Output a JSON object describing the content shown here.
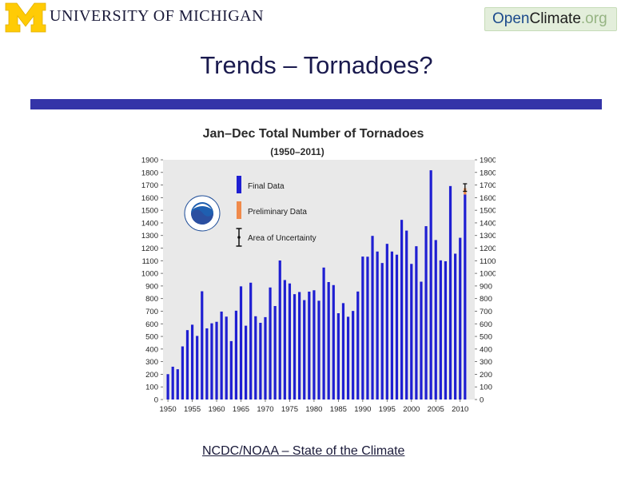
{
  "header": {
    "university_name": "UNIVERSITY OF MICHIGAN",
    "logo_letter": "M",
    "site_logo": {
      "open": "Open",
      "climate": "Climate",
      "org": ".org"
    }
  },
  "slide": {
    "title": "Trends – Tornadoes?",
    "source_link": "NCDC/NOAA – State of the Climate"
  },
  "colors": {
    "title_bar": "#3434a8",
    "final_data": "#1f1fd2",
    "preliminary_data": "#f08a4b",
    "plot_background": "#e9e9e9",
    "maize": "#ffcb05"
  },
  "chart_data": {
    "type": "bar",
    "title": "Jan–Dec Total Number of Tornadoes",
    "subtitle": "(1950–2011)",
    "xlabel": "",
    "ylabel": "",
    "x": [
      1950,
      1951,
      1952,
      1953,
      1954,
      1955,
      1956,
      1957,
      1958,
      1959,
      1960,
      1961,
      1962,
      1963,
      1964,
      1965,
      1966,
      1967,
      1968,
      1969,
      1970,
      1971,
      1972,
      1973,
      1974,
      1975,
      1976,
      1977,
      1978,
      1979,
      1980,
      1981,
      1982,
      1983,
      1984,
      1985,
      1986,
      1987,
      1988,
      1989,
      1990,
      1991,
      1992,
      1993,
      1994,
      1995,
      1996,
      1997,
      1998,
      1999,
      2000,
      2001,
      2002,
      2003,
      2004,
      2005,
      2006,
      2007,
      2008,
      2009,
      2010,
      2011
    ],
    "series": [
      {
        "name": "Final Data",
        "color": "#1f1fd2",
        "values": [
          201,
          260,
          240,
          421,
          550,
          593,
          504,
          858,
          564,
          604,
          616,
          697,
          657,
          463,
          704,
          897,
          585,
          926,
          660,
          608,
          653,
          888,
          741,
          1102,
          947,
          920,
          835,
          852,
          788,
          855,
          866,
          783,
          1046,
          931,
          907,
          684,
          764,
          656,
          702,
          856,
          1133,
          1132,
          1297,
          1173,
          1082,
          1234,
          1173,
          1148,
          1424,
          1339,
          1075,
          1215,
          934,
          1374,
          1817,
          1264,
          1103,
          1096,
          1692,
          1156,
          1282,
          1625
        ]
      },
      {
        "name": "Preliminary Data",
        "color": "#f08a4b",
        "values": [
          0,
          0,
          0,
          0,
          0,
          0,
          0,
          0,
          0,
          0,
          0,
          0,
          0,
          0,
          0,
          0,
          0,
          0,
          0,
          0,
          0,
          0,
          0,
          0,
          0,
          0,
          0,
          0,
          0,
          0,
          0,
          0,
          0,
          0,
          0,
          0,
          0,
          0,
          0,
          0,
          0,
          0,
          0,
          0,
          0,
          0,
          0,
          0,
          0,
          0,
          0,
          0,
          0,
          0,
          0,
          0,
          0,
          0,
          0,
          0,
          0,
          50
        ]
      }
    ],
    "uncertainty": {
      "x": 2011,
      "low": 1650,
      "high": 1710
    },
    "legend": {
      "position": "top-left",
      "items": [
        "Final Data",
        "Preliminary Data",
        "Area of Uncertainty"
      ]
    },
    "ylim": [
      0,
      1900
    ],
    "yticks": [
      0,
      100,
      200,
      300,
      400,
      500,
      600,
      700,
      800,
      900,
      1000,
      1100,
      1200,
      1300,
      1400,
      1500,
      1600,
      1700,
      1800,
      1900
    ],
    "xlim": [
      1949,
      2013
    ],
    "xticks": [
      1950,
      1955,
      1960,
      1965,
      1970,
      1975,
      1980,
      1985,
      1990,
      1995,
      2000,
      2005,
      2010
    ],
    "grid": false
  }
}
